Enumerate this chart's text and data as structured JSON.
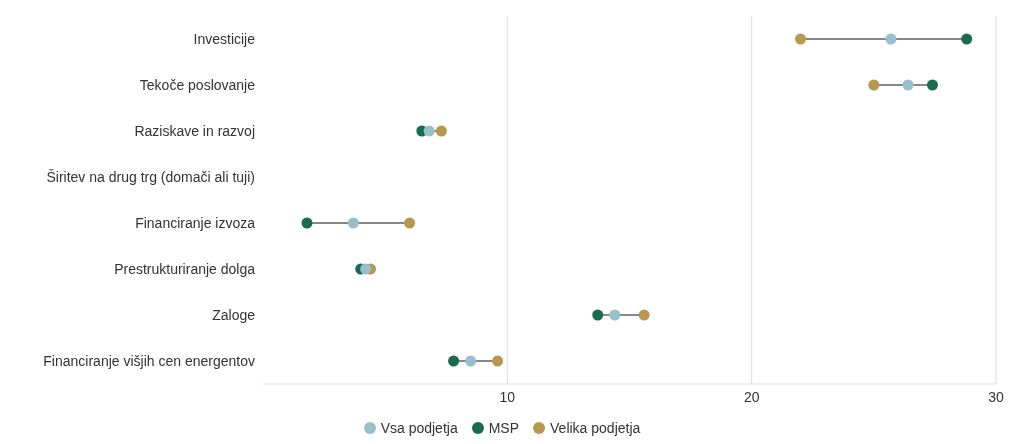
{
  "chart_data": {
    "type": "scatter",
    "orientation": "horizontal",
    "categories": [
      "Investicije",
      "Tekoče poslovanje",
      "Raziskave in razvoj",
      "Širitev na drug trg (domači ali tuji)",
      "Financiranje izvoza",
      "Prestrukturiranje dolga",
      "Zaloge",
      "Financiranje višjih cen energentov"
    ],
    "series": [
      {
        "name": "Vsa podjetja",
        "color": "#96c0cc",
        "values": [
          25.7,
          26.4,
          6.8,
          null,
          3.7,
          4.2,
          14.4,
          8.5
        ]
      },
      {
        "name": "MSP",
        "color": "#1a6b50",
        "values": [
          28.8,
          27.4,
          6.5,
          null,
          1.8,
          4.0,
          13.7,
          7.8
        ]
      },
      {
        "name": "Velika podjetja",
        "color": "#b8974e",
        "values": [
          22.0,
          25.0,
          7.3,
          null,
          6.0,
          4.4,
          15.6,
          9.6
        ]
      }
    ],
    "xlim": [
      0,
      30
    ],
    "xticks": [
      10,
      20,
      30
    ],
    "grid": "x",
    "legend": "bottom",
    "marker": "circle"
  }
}
